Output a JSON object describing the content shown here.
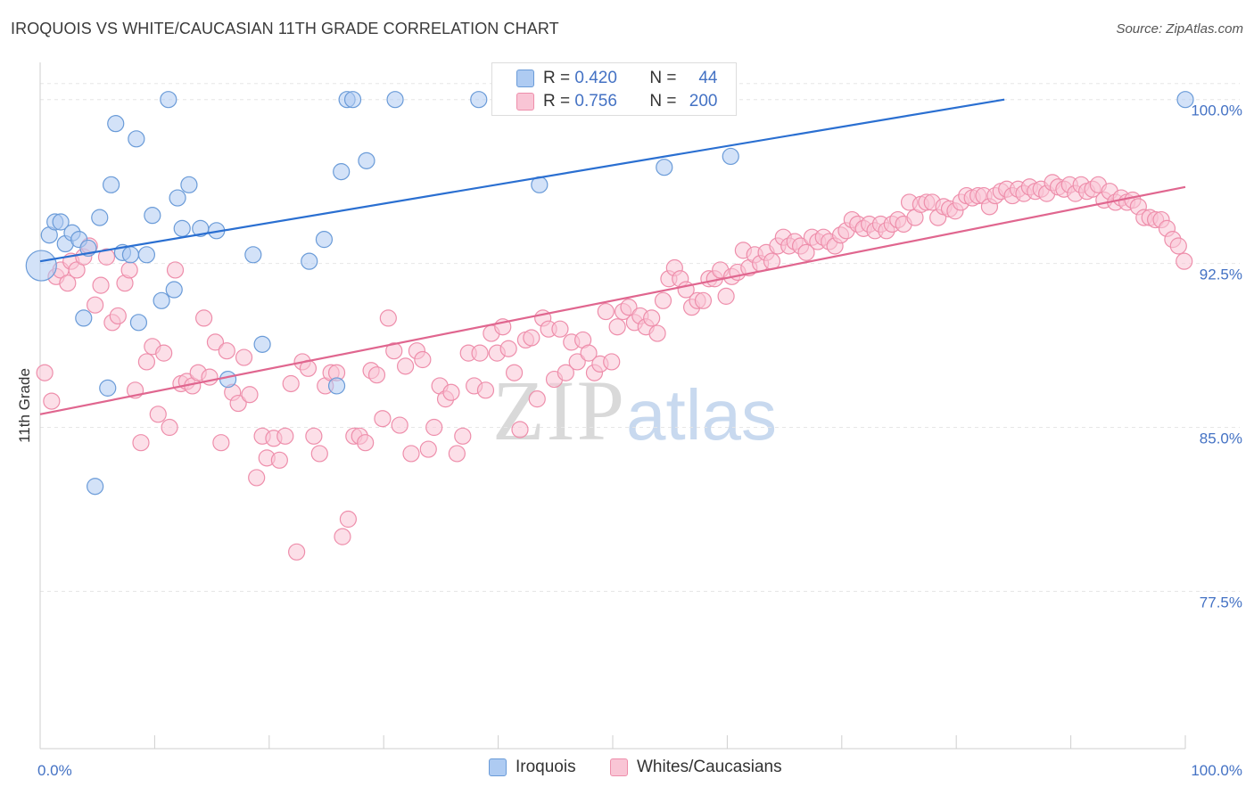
{
  "header": {
    "title": "IROQUOIS VS WHITE/CAUCASIAN 11TH GRADE CORRELATION CHART",
    "source": "Source: ZipAtlas.com"
  },
  "watermark": {
    "zip": "ZIP",
    "atlas": "atlas"
  },
  "legend": {
    "rows": [
      {
        "r_label": "R =",
        "r_value": "0.420",
        "n_label": "N =",
        "n_value": "44"
      },
      {
        "r_label": "R =",
        "r_value": "0.756",
        "n_label": "N =",
        "n_value": "200"
      }
    ]
  },
  "bottom_legend": {
    "series1": "Iroquois",
    "series2": "Whites/Caucasians"
  },
  "colors": {
    "iroquois_fill": "#aecbf2",
    "iroquois_stroke": "#6a9bd8",
    "iroquois_line": "#2a6fd1",
    "white_fill": "#f9c5d5",
    "white_stroke": "#ee8eab",
    "white_line": "#e0668f",
    "tick_label": "#4472c4",
    "grid": "#e6e6e6"
  },
  "chart_data": {
    "type": "scatter",
    "title": "IROQUOIS VS WHITE/CAUCASIAN 11TH GRADE CORRELATION CHART",
    "xlabel": "",
    "ylabel": "11th Grade",
    "xlim": [
      0,
      100
    ],
    "ylim": [
      70.3,
      101.7
    ],
    "y_ticks": [
      {
        "value": 77.5,
        "label": "77.5%"
      },
      {
        "value": 85.0,
        "label": "85.0%"
      },
      {
        "value": 92.5,
        "label": "92.5%"
      },
      {
        "value": 100.0,
        "label": "100.0%"
      }
    ],
    "x_tick_labels": {
      "left": "0.0%",
      "right": "100.0%"
    },
    "grid": true,
    "legend_position": "top-center",
    "series": [
      {
        "name": "Iroquois",
        "r": 0.42,
        "n": 44,
        "trend": {
          "x0": 0,
          "y0": 92.6,
          "x1": 84.2,
          "y1": 100.0
        },
        "points": [
          [
            0.1,
            92.4
          ],
          [
            0.8,
            93.8
          ],
          [
            1.3,
            94.4
          ],
          [
            1.8,
            94.4
          ],
          [
            2.2,
            93.4
          ],
          [
            2.8,
            93.9
          ],
          [
            3.4,
            93.6
          ],
          [
            3.8,
            90.0
          ],
          [
            4.2,
            93.2
          ],
          [
            5.2,
            94.6
          ],
          [
            5.9,
            86.8
          ],
          [
            6.2,
            96.1
          ],
          [
            6.6,
            98.9
          ],
          [
            7.2,
            93.0
          ],
          [
            7.9,
            92.9
          ],
          [
            8.4,
            98.2
          ],
          [
            8.6,
            89.8
          ],
          [
            9.3,
            92.9
          ],
          [
            9.8,
            94.7
          ],
          [
            10.6,
            90.8
          ],
          [
            11.2,
            100.0
          ],
          [
            11.7,
            91.3
          ],
          [
            12.0,
            95.5
          ],
          [
            12.4,
            94.1
          ],
          [
            13.0,
            96.1
          ],
          [
            14.0,
            94.1
          ],
          [
            15.4,
            94.0
          ],
          [
            16.4,
            87.2
          ],
          [
            18.6,
            92.9
          ],
          [
            19.4,
            88.8
          ],
          [
            23.5,
            92.6
          ],
          [
            24.8,
            93.6
          ],
          [
            25.9,
            86.9
          ],
          [
            26.3,
            96.7
          ],
          [
            26.8,
            100.0
          ],
          [
            27.3,
            100.0
          ],
          [
            28.5,
            97.2
          ],
          [
            31.0,
            100.0
          ],
          [
            38.3,
            100.0
          ],
          [
            43.6,
            96.1
          ],
          [
            54.5,
            96.9
          ],
          [
            60.3,
            97.4
          ],
          [
            100.0,
            100.0
          ],
          [
            4.8,
            82.3
          ]
        ]
      },
      {
        "name": "Whites/Caucasians",
        "r": 0.756,
        "n": 200,
        "trend": {
          "x0": 0,
          "y0": 85.6,
          "x1": 100,
          "y1": 96.0
        },
        "points": [
          [
            0.4,
            87.5
          ],
          [
            1.0,
            86.2
          ],
          [
            1.4,
            91.9
          ],
          [
            1.8,
            92.2
          ],
          [
            2.4,
            91.6
          ],
          [
            2.7,
            92.6
          ],
          [
            3.2,
            92.2
          ],
          [
            3.8,
            92.8
          ],
          [
            4.3,
            93.3
          ],
          [
            4.8,
            90.6
          ],
          [
            5.3,
            91.5
          ],
          [
            5.8,
            92.8
          ],
          [
            6.3,
            89.8
          ],
          [
            6.8,
            90.1
          ],
          [
            7.4,
            91.6
          ],
          [
            7.8,
            92.2
          ],
          [
            8.3,
            86.7
          ],
          [
            8.8,
            84.3
          ],
          [
            9.3,
            88.0
          ],
          [
            9.8,
            88.7
          ],
          [
            10.3,
            85.6
          ],
          [
            10.8,
            88.4
          ],
          [
            11.3,
            85.0
          ],
          [
            11.8,
            92.2
          ],
          [
            12.3,
            87.0
          ],
          [
            12.8,
            87.1
          ],
          [
            13.3,
            86.9
          ],
          [
            13.8,
            87.5
          ],
          [
            14.3,
            90.0
          ],
          [
            14.8,
            87.3
          ],
          [
            15.3,
            88.9
          ],
          [
            15.8,
            84.3
          ],
          [
            16.3,
            88.5
          ],
          [
            16.8,
            86.6
          ],
          [
            17.3,
            86.1
          ],
          [
            17.8,
            88.2
          ],
          [
            18.3,
            86.5
          ],
          [
            18.9,
            82.7
          ],
          [
            19.4,
            84.6
          ],
          [
            19.8,
            83.6
          ],
          [
            20.4,
            84.5
          ],
          [
            20.9,
            83.5
          ],
          [
            21.4,
            84.6
          ],
          [
            21.9,
            87.0
          ],
          [
            22.4,
            79.3
          ],
          [
            22.9,
            88.0
          ],
          [
            23.4,
            87.7
          ],
          [
            23.9,
            84.6
          ],
          [
            24.4,
            83.8
          ],
          [
            24.9,
            86.9
          ],
          [
            25.4,
            87.5
          ],
          [
            25.9,
            87.5
          ],
          [
            26.4,
            80.0
          ],
          [
            26.9,
            80.8
          ],
          [
            27.4,
            84.6
          ],
          [
            27.9,
            84.6
          ],
          [
            28.4,
            84.3
          ],
          [
            28.9,
            87.6
          ],
          [
            29.4,
            87.4
          ],
          [
            29.9,
            85.4
          ],
          [
            30.4,
            90.0
          ],
          [
            30.9,
            88.5
          ],
          [
            31.4,
            85.1
          ],
          [
            31.9,
            87.8
          ],
          [
            32.4,
            83.8
          ],
          [
            32.9,
            88.5
          ],
          [
            33.4,
            88.1
          ],
          [
            33.9,
            84.0
          ],
          [
            34.4,
            85.0
          ],
          [
            34.9,
            86.9
          ],
          [
            35.4,
            86.3
          ],
          [
            35.9,
            86.6
          ],
          [
            36.4,
            83.8
          ],
          [
            36.9,
            84.6
          ],
          [
            37.4,
            88.4
          ],
          [
            37.9,
            86.9
          ],
          [
            38.4,
            88.4
          ],
          [
            38.9,
            86.7
          ],
          [
            39.4,
            89.3
          ],
          [
            39.9,
            88.4
          ],
          [
            40.4,
            89.6
          ],
          [
            40.9,
            88.6
          ],
          [
            41.4,
            87.5
          ],
          [
            41.9,
            84.9
          ],
          [
            42.4,
            89.0
          ],
          [
            42.9,
            89.1
          ],
          [
            43.4,
            86.3
          ],
          [
            43.9,
            90.0
          ],
          [
            44.4,
            89.5
          ],
          [
            44.9,
            87.2
          ],
          [
            45.4,
            89.5
          ],
          [
            45.9,
            87.5
          ],
          [
            46.4,
            88.9
          ],
          [
            46.9,
            88.0
          ],
          [
            47.4,
            89.0
          ],
          [
            47.9,
            88.4
          ],
          [
            48.4,
            87.5
          ],
          [
            48.9,
            87.9
          ],
          [
            49.4,
            90.3
          ],
          [
            49.9,
            88.0
          ],
          [
            50.4,
            89.6
          ],
          [
            50.9,
            90.3
          ],
          [
            51.4,
            90.5
          ],
          [
            51.9,
            89.8
          ],
          [
            52.4,
            90.1
          ],
          [
            52.9,
            89.6
          ],
          [
            53.4,
            90.0
          ],
          [
            53.9,
            89.3
          ],
          [
            54.4,
            90.8
          ],
          [
            54.9,
            91.8
          ],
          [
            55.4,
            92.3
          ],
          [
            55.9,
            91.8
          ],
          [
            56.4,
            91.3
          ],
          [
            56.9,
            90.5
          ],
          [
            57.4,
            90.8
          ],
          [
            57.9,
            90.8
          ],
          [
            58.4,
            91.8
          ],
          [
            58.9,
            91.8
          ],
          [
            59.4,
            92.2
          ],
          [
            59.9,
            91.0
          ],
          [
            60.4,
            91.9
          ],
          [
            60.9,
            92.1
          ],
          [
            61.4,
            93.1
          ],
          [
            61.9,
            92.3
          ],
          [
            62.4,
            92.9
          ],
          [
            62.9,
            92.5
          ],
          [
            63.4,
            93.0
          ],
          [
            63.9,
            92.6
          ],
          [
            64.4,
            93.3
          ],
          [
            64.9,
            93.7
          ],
          [
            65.4,
            93.3
          ],
          [
            65.9,
            93.5
          ],
          [
            66.4,
            93.3
          ],
          [
            66.9,
            93.0
          ],
          [
            67.4,
            93.7
          ],
          [
            67.9,
            93.5
          ],
          [
            68.4,
            93.7
          ],
          [
            68.9,
            93.5
          ],
          [
            69.4,
            93.3
          ],
          [
            69.9,
            93.8
          ],
          [
            70.4,
            94.0
          ],
          [
            70.9,
            94.5
          ],
          [
            71.4,
            94.3
          ],
          [
            71.9,
            94.1
          ],
          [
            72.4,
            94.3
          ],
          [
            72.9,
            94.0
          ],
          [
            73.4,
            94.3
          ],
          [
            73.9,
            94.0
          ],
          [
            74.4,
            94.3
          ],
          [
            74.9,
            94.5
          ],
          [
            75.4,
            94.3
          ],
          [
            75.9,
            95.3
          ],
          [
            76.4,
            94.6
          ],
          [
            76.9,
            95.2
          ],
          [
            77.4,
            95.3
          ],
          [
            77.9,
            95.3
          ],
          [
            78.4,
            94.6
          ],
          [
            78.9,
            95.1
          ],
          [
            79.4,
            95.0
          ],
          [
            79.9,
            94.9
          ],
          [
            80.4,
            95.3
          ],
          [
            80.9,
            95.6
          ],
          [
            81.4,
            95.5
          ],
          [
            81.9,
            95.6
          ],
          [
            82.4,
            95.6
          ],
          [
            82.9,
            95.1
          ],
          [
            83.4,
            95.6
          ],
          [
            83.9,
            95.8
          ],
          [
            84.4,
            95.9
          ],
          [
            84.9,
            95.6
          ],
          [
            85.4,
            95.9
          ],
          [
            85.9,
            95.7
          ],
          [
            86.4,
            96.0
          ],
          [
            86.9,
            95.8
          ],
          [
            87.4,
            95.9
          ],
          [
            87.9,
            95.7
          ],
          [
            88.4,
            96.2
          ],
          [
            88.9,
            96.0
          ],
          [
            89.4,
            95.9
          ],
          [
            89.9,
            96.1
          ],
          [
            90.4,
            95.7
          ],
          [
            90.9,
            96.1
          ],
          [
            91.4,
            95.8
          ],
          [
            91.9,
            95.9
          ],
          [
            92.4,
            96.1
          ],
          [
            92.9,
            95.4
          ],
          [
            93.4,
            95.8
          ],
          [
            93.9,
            95.3
          ],
          [
            94.4,
            95.5
          ],
          [
            94.9,
            95.3
          ],
          [
            95.4,
            95.4
          ],
          [
            95.9,
            95.1
          ],
          [
            96.4,
            94.6
          ],
          [
            96.9,
            94.6
          ],
          [
            97.4,
            94.5
          ],
          [
            97.9,
            94.5
          ],
          [
            98.4,
            94.1
          ],
          [
            98.9,
            93.6
          ],
          [
            99.4,
            93.3
          ],
          [
            99.9,
            92.6
          ]
        ]
      }
    ]
  }
}
